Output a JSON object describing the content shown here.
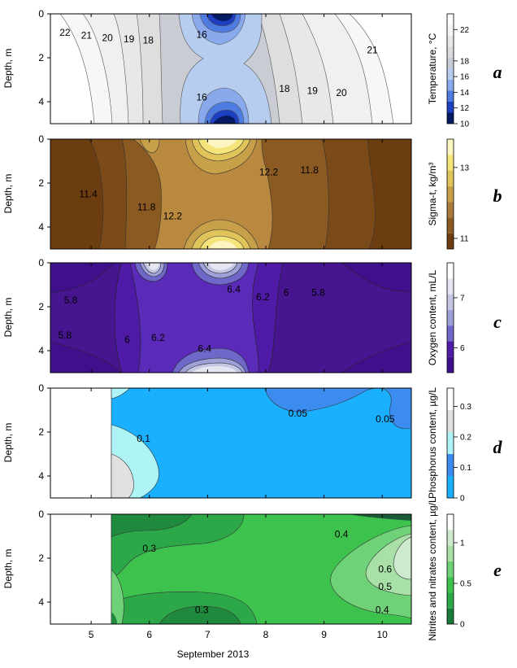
{
  "xlabel": "September 2013",
  "x_ticks": [
    5,
    6,
    7,
    8,
    9,
    10
  ],
  "colors": {
    "temp": [
      "#051a63",
      "#1e3fbf",
      "#4d7be0",
      "#88a9ec",
      "#b7cdf0",
      "#c6cdd6",
      "#d9dbde",
      "#e8e8e8",
      "#f5f5f5",
      "#ffffff"
    ],
    "sigma": [
      "#6b3d0f",
      "#8a5a22",
      "#a97a3a",
      "#c8a04a",
      "#e0c45a",
      "#f4e47a",
      "#fdf5c2"
    ],
    "oxygen": [
      "#40108c",
      "#4f1aa6",
      "#7068c8",
      "#9ea0d8",
      "#c4c6e4",
      "#e6e6f2",
      "#ffffff"
    ],
    "phos": [
      "#1aafff",
      "#3c8cf0",
      "#aef4f6",
      "#e0e0e0",
      "#ffffff"
    ],
    "nitr": [
      "#1a7a3a",
      "#2da848",
      "#3ec24e",
      "#6fd278",
      "#a8e0a8",
      "#cfe9cf",
      "#ffffff"
    ]
  },
  "chart_data": [
    {
      "id": "a",
      "type": "heatmap",
      "panel_label": "a",
      "x_range": [
        4.3,
        10.5
      ],
      "y_range": [
        0,
        5
      ],
      "y_ticks": [
        0,
        2,
        4
      ],
      "ylabel": "Depth, m",
      "colorbar": {
        "label": "Temperature, °C",
        "ticks": [
          10,
          12,
          14,
          16,
          18,
          22
        ],
        "range": [
          10,
          24
        ]
      },
      "contour_labels": [
        {
          "text": "22",
          "x": 4.55,
          "y": 0.85
        },
        {
          "text": "21",
          "x": 4.92,
          "y": 0.98
        },
        {
          "text": "20",
          "x": 5.28,
          "y": 1.1
        },
        {
          "text": "19",
          "x": 5.65,
          "y": 1.15
        },
        {
          "text": "18",
          "x": 5.98,
          "y": 1.2
        },
        {
          "text": "16",
          "x": 6.9,
          "y": 0.95
        },
        {
          "text": "16",
          "x": 6.9,
          "y": 3.8
        },
        {
          "text": "18",
          "x": 8.32,
          "y": 3.4
        },
        {
          "text": "19",
          "x": 8.8,
          "y": 3.5
        },
        {
          "text": "20",
          "x": 9.3,
          "y": 3.6
        },
        {
          "text": "21",
          "x": 9.83,
          "y": 1.65
        }
      ]
    },
    {
      "id": "b",
      "type": "heatmap",
      "panel_label": "b",
      "x_range": [
        4.3,
        10.5
      ],
      "y_range": [
        0,
        5
      ],
      "y_ticks": [
        0,
        2,
        4
      ],
      "ylabel": "Depth, m",
      "colorbar": {
        "label": "Sigma-t, kg/m³",
        "ticks": [
          11,
          13
        ],
        "range": [
          10.7,
          13.8
        ]
      },
      "contour_labels": [
        {
          "text": "11.4",
          "x": 4.95,
          "y": 2.5
        },
        {
          "text": "11.8",
          "x": 5.95,
          "y": 3.1
        },
        {
          "text": "12.2",
          "x": 6.4,
          "y": 3.5
        },
        {
          "text": "12.2",
          "x": 8.05,
          "y": 1.5
        },
        {
          "text": "11.8",
          "x": 8.75,
          "y": 1.4
        }
      ]
    },
    {
      "id": "c",
      "type": "heatmap",
      "panel_label": "c",
      "x_range": [
        4.3,
        10.5
      ],
      "y_range": [
        0,
        5
      ],
      "y_ticks": [
        0,
        2,
        4
      ],
      "ylabel": "Oxygen content, mL/L",
      "colorbar": {
        "label": "Oxygen content, mL/L",
        "ticks": [
          6,
          7
        ],
        "range": [
          5.5,
          7.7
        ]
      },
      "contour_labels": [
        {
          "text": "5.8",
          "x": 4.65,
          "y": 1.7
        },
        {
          "text": "5.8",
          "x": 4.55,
          "y": 3.3
        },
        {
          "text": "6",
          "x": 5.62,
          "y": 3.5
        },
        {
          "text": "6.2",
          "x": 6.15,
          "y": 3.4
        },
        {
          "text": "6.4",
          "x": 6.95,
          "y": 3.9
        },
        {
          "text": "6.4",
          "x": 7.45,
          "y": 1.2
        },
        {
          "text": "6.2",
          "x": 7.95,
          "y": 1.55
        },
        {
          "text": "6",
          "x": 8.35,
          "y": 1.35
        },
        {
          "text": "5.8",
          "x": 8.9,
          "y": 1.35
        }
      ]
    },
    {
      "id": "d",
      "type": "heatmap",
      "panel_label": "d",
      "x_range": [
        4.3,
        10.5
      ],
      "y_range": [
        0,
        5
      ],
      "y_ticks": [
        0,
        2,
        4
      ],
      "ylabel": "Depth, m",
      "colorbar": {
        "label": "Phosphorus content, µg/L",
        "ticks": [
          0,
          0.1,
          0.2,
          0.3
        ],
        "range": [
          0,
          0.36
        ]
      },
      "contour_labels": [
        {
          "text": "0.05",
          "x": 8.55,
          "y": 1.15
        },
        {
          "text": "0.05",
          "x": 10.05,
          "y": 1.4
        },
        {
          "text": "0.1",
          "x": 5.9,
          "y": 2.3
        }
      ]
    },
    {
      "id": "e",
      "type": "heatmap",
      "panel_label": "e",
      "x_range": [
        4.3,
        10.5
      ],
      "y_range": [
        0,
        5
      ],
      "y_ticks": [
        0,
        2,
        4
      ],
      "ylabel": "Depth, m",
      "colorbar": {
        "label": "Nitrites and nitrates content, µg/L",
        "ticks": [
          0,
          0.5,
          1
        ],
        "range": [
          0,
          1.35
        ]
      },
      "contour_labels": [
        {
          "text": "0.3",
          "x": 6.0,
          "y": 1.55
        },
        {
          "text": "0.4",
          "x": 9.3,
          "y": 0.9
        },
        {
          "text": "0.6",
          "x": 10.05,
          "y": 2.5
        },
        {
          "text": "0.5",
          "x": 10.05,
          "y": 3.3
        },
        {
          "text": "0.4",
          "x": 10.0,
          "y": 4.35
        },
        {
          "text": "0.3",
          "x": 6.9,
          "y": 4.35
        }
      ]
    }
  ]
}
